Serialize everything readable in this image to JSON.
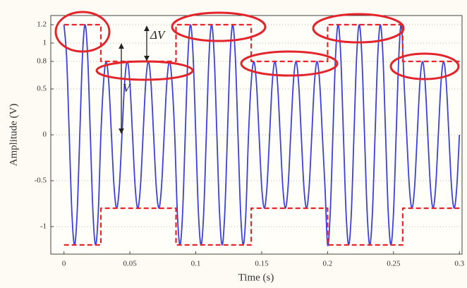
{
  "chart_data": {
    "type": "line",
    "x_label": "Time (s)",
    "y_label": "Amplitude (V)",
    "annotations": [
      "ΔV",
      "V"
    ],
    "xlim": [
      -0.01,
      0.302
    ],
    "ylim": [
      -1.3,
      1.3
    ],
    "xticks": [
      0,
      0.05,
      0.1,
      0.15,
      0.2,
      0.25,
      0.3
    ],
    "yticks": [
      -1,
      -0.5,
      0,
      0.5,
      0.8,
      1,
      1.2
    ],
    "grid": true,
    "series": [
      {
        "color": "#3b3fe6",
        "style": "solid",
        "smooth": true,
        "x": [
          0,
          0.002,
          0.004,
          0.006,
          0.008,
          0.01,
          0.012,
          0.014,
          0.016,
          0.018,
          0.02,
          0.022,
          0.024,
          0.026,
          0.028,
          0.03,
          0.032,
          0.034,
          0.036,
          0.038,
          0.04,
          0.042,
          0.044,
          0.046,
          0.048,
          0.05,
          0.052,
          0.054,
          0.056,
          0.058,
          0.06,
          0.062,
          0.064,
          0.066,
          0.068,
          0.07,
          0.072,
          0.074,
          0.076,
          0.078,
          0.08,
          0.082,
          0.084,
          0.086,
          0.088,
          0.09,
          0.092,
          0.094,
          0.096,
          0.098,
          0.1,
          0.102,
          0.104,
          0.106,
          0.108,
          0.11,
          0.112,
          0.114,
          0.116,
          0.118,
          0.12,
          0.122,
          0.124,
          0.126,
          0.128,
          0.13,
          0.132,
          0.134,
          0.136,
          0.138,
          0.14,
          0.142,
          0.144,
          0.146,
          0.148,
          0.15,
          0.152,
          0.154,
          0.156,
          0.158,
          0.16,
          0.162,
          0.164,
          0.166,
          0.168,
          0.17,
          0.172,
          0.174,
          0.176,
          0.178,
          0.18,
          0.182,
          0.184,
          0.186,
          0.188,
          0.19,
          0.192,
          0.194,
          0.196,
          0.198,
          0.2,
          0.202,
          0.204,
          0.206,
          0.208,
          0.21,
          0.212,
          0.214,
          0.216,
          0.218,
          0.22,
          0.222,
          0.224,
          0.226,
          0.228,
          0.23,
          0.232,
          0.234,
          0.236,
          0.238,
          0.24,
          0.242,
          0.244,
          0.246,
          0.248,
          0.25,
          0.252,
          0.254,
          0.256,
          0.258,
          0.26,
          0.262,
          0.264,
          0.266,
          0.268,
          0.27,
          0.272,
          0.274,
          0.276,
          0.278,
          0.28,
          0.282,
          0.284,
          0.286,
          0.288,
          0.29,
          0.292,
          0.294,
          0.296,
          0.298,
          0.3
        ],
        "values": [
          1.2,
          0.849,
          0,
          -0.849,
          -1.2,
          -0.849,
          0,
          0.849,
          1.2,
          0.849,
          0,
          -0.849,
          -1.2,
          -0.849,
          0,
          0.566,
          0.8,
          0.566,
          0,
          -0.566,
          -0.8,
          -0.566,
          0,
          0.566,
          0.8,
          0.566,
          0,
          -0.566,
          -0.8,
          -0.566,
          0,
          0.566,
          0.8,
          0.566,
          0,
          -0.566,
          -0.8,
          -0.566,
          0,
          0.566,
          0.8,
          0.566,
          0,
          -0.849,
          -1.2,
          -0.849,
          0,
          0.849,
          1.2,
          0.849,
          0,
          -0.849,
          -1.2,
          -0.849,
          0,
          0.849,
          1.2,
          0.849,
          0,
          -0.849,
          -1.2,
          -0.849,
          0,
          0.849,
          1.2,
          0.849,
          0,
          -0.849,
          -1.2,
          -0.849,
          0,
          0.566,
          0.8,
          0.566,
          0,
          -0.566,
          -0.8,
          -0.566,
          0,
          0.566,
          0.8,
          0.566,
          0,
          -0.566,
          -0.8,
          -0.566,
          0,
          0.566,
          0.8,
          0.566,
          0,
          -0.566,
          -0.8,
          -0.566,
          0,
          0.566,
          0.8,
          0.566,
          0,
          -0.566,
          -1.2,
          -0.849,
          0,
          0.849,
          1.2,
          0.849,
          0,
          -0.849,
          -1.2,
          -0.849,
          0,
          0.849,
          1.2,
          0.849,
          0,
          -0.849,
          -1.2,
          -0.849,
          0,
          0.849,
          1.2,
          0.849,
          0,
          -0.849,
          -1.2,
          -0.849,
          0,
          0.849,
          1.2,
          0.566,
          0,
          -0.566,
          -0.8,
          -0.566,
          0,
          0.566,
          0.8,
          0.566,
          0,
          -0.566,
          -0.8,
          -0.566,
          0,
          0.566,
          0.8,
          0.566,
          0,
          -0.566,
          -0.8,
          -0.566,
          0
        ]
      },
      {
        "color": "#e8262c",
        "style": "dashed",
        "smooth": false,
        "x": [
          0,
          0.028,
          0.028,
          0.085,
          0.085,
          0.142,
          0.142,
          0.2,
          0.2,
          0.257,
          0.257,
          0.3
        ],
        "values": [
          1.2,
          1.2,
          0.8,
          0.8,
          1.2,
          1.2,
          0.8,
          0.8,
          1.2,
          1.2,
          0.8,
          0.8
        ]
      },
      {
        "color": "#e8262c",
        "style": "dashed",
        "smooth": false,
        "x": [
          0,
          0.028,
          0.028,
          0.085,
          0.085,
          0.142,
          0.142,
          0.2,
          0.2,
          0.257,
          0.257,
          0.3
        ],
        "values": [
          -1.2,
          -1.2,
          -0.8,
          -0.8,
          -1.2,
          -1.2,
          -0.8,
          -0.8,
          -1.2,
          -1.2,
          -0.8,
          -0.8
        ]
      }
    ]
  }
}
